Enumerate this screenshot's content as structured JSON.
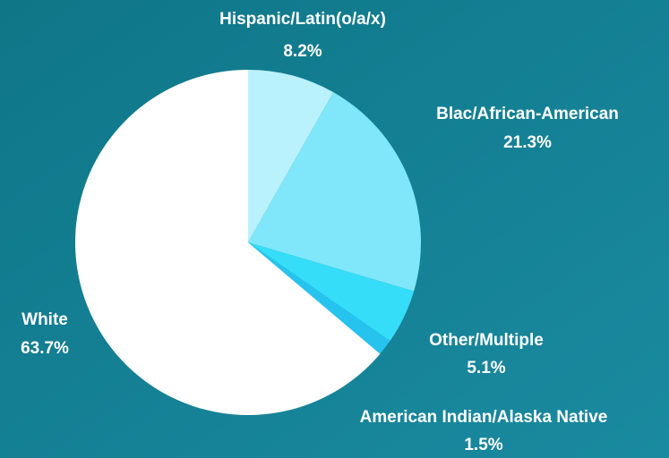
{
  "chart_data": {
    "type": "pie",
    "categories": [
      "Hispanic/Latin(o/a/x)",
      "Blac/African-American",
      "Other/Multiple",
      "American Indian/Alaska Native",
      "White"
    ],
    "values": [
      8.2,
      21.3,
      5.1,
      1.5,
      63.7
    ],
    "value_labels": [
      "8.2%",
      "21.3%",
      "5.1%",
      "1.5%",
      "63.7%"
    ],
    "colors": [
      "#b9f1fc",
      "#80e7fb",
      "#35ddf8",
      "#26c3ef",
      "#ffffff"
    ]
  }
}
